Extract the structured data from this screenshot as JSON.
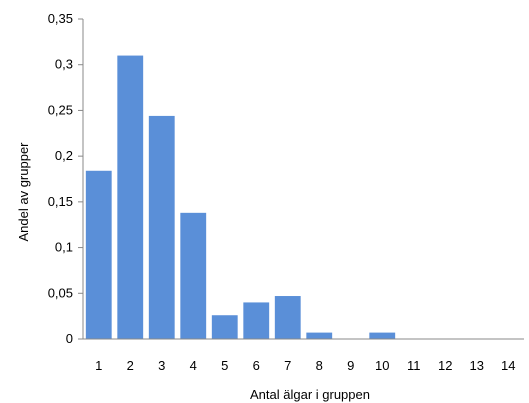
{
  "chart_data": {
    "type": "bar",
    "title": "",
    "xlabel": "Antal älgar i gruppen",
    "ylabel": "Andel av grupper",
    "categories": [
      "1",
      "2",
      "3",
      "4",
      "5",
      "6",
      "7",
      "8",
      "9",
      "10",
      "11",
      "12",
      "13",
      "14"
    ],
    "values": [
      0.184,
      0.31,
      0.244,
      0.138,
      0.026,
      0.04,
      0.047,
      0.007,
      0,
      0.007,
      0,
      0,
      0,
      0
    ],
    "ylim": [
      0,
      0.35
    ],
    "yticks": [
      0,
      0.05,
      0.1,
      0.15,
      0.2,
      0.25,
      0.3,
      0.35
    ],
    "ytick_labels": [
      "0",
      "0,05",
      "0,1",
      "0,15",
      "0,2",
      "0,25",
      "0,3",
      "0,35"
    ],
    "bar_color": "#5a8fd8",
    "grid": false,
    "legend": false
  }
}
